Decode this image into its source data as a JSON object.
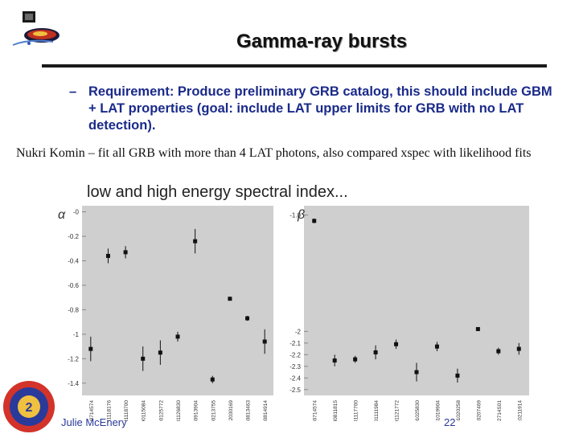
{
  "slide": {
    "title": "Gamma-ray bursts",
    "requirement_bullet": "–",
    "requirement": "Requirement: Produce preliminary GRB catalog, this should include GBM  + LAT properties (goal: include LAT upper limits for GRB with no LAT detection).",
    "note": "Nukri Komin – fit all GRB with more than 4 LAT photons, also compared xspec with likelihood fits",
    "plot_title": "low and high energy spectral index...",
    "footer_author": "Julie McEnery",
    "footer_page": "22",
    "marker_color": "#111111",
    "panel_color": "#cfcfcf"
  },
  "chart_data": [
    {
      "type": "scatter",
      "ylabel": "α",
      "ylim": [
        -1.5,
        0.05
      ],
      "yticks": [
        0,
        -0.2,
        -0.4,
        -0.6,
        -0.8,
        -1,
        -1.2,
        -1.4
      ],
      "ytick_labels": [
        "-0",
        "-0.2",
        "-0.4",
        "-0.6",
        "-0.8",
        "-1",
        "-1.2",
        "-1.4"
      ],
      "categories": [
        "GRB080714574",
        "GRB081118176",
        "GRB081118700",
        "GRB090115084",
        "GRB090125772",
        "GRB081126830",
        "GRB080913904",
        "GRB090213755",
        "GRB080912030169",
        "GRB080813463",
        "GRB080814914"
      ],
      "values": [
        -1.12,
        -0.36,
        -0.33,
        -1.2,
        -1.15,
        -1.02,
        -0.24,
        -1.37,
        -0.71,
        -0.87,
        -1.06
      ],
      "errors": [
        0.1,
        0.06,
        0.05,
        0.1,
        0.1,
        0.04,
        0.1,
        0.03,
        0.01,
        0.02,
        0.1
      ]
    },
    {
      "type": "scatter",
      "ylabel": "β",
      "ylim": [
        -2.55,
        -0.92
      ],
      "yticks": [
        -1,
        -2,
        -2.1,
        -2.2,
        -2.3,
        -2.4,
        -2.5
      ],
      "ytick_labels": [
        "-1.0",
        "-2",
        "-2.1",
        "-2.2",
        "-2.3",
        "-2.4",
        "-2.5"
      ],
      "categories": [
        "GRB080714574",
        "GRB080811815",
        "GRB0801117700",
        "GRB0801111984",
        "GRB0801121772",
        "GRB0801025830",
        "GRB081019904",
        "GRB081020258",
        "GRB0810207469",
        "GRB08102714S01",
        "GRB0810211914"
      ],
      "values": [
        -1.05,
        -2.25,
        -2.24,
        -2.18,
        -2.11,
        -2.35,
        -2.13,
        -2.38,
        -1.98,
        -2.17,
        -2.15
      ],
      "errors": [
        0.02,
        0.05,
        0.03,
        0.06,
        0.04,
        0.08,
        0.04,
        0.06,
        0.01,
        0.03,
        0.05
      ]
    }
  ]
}
